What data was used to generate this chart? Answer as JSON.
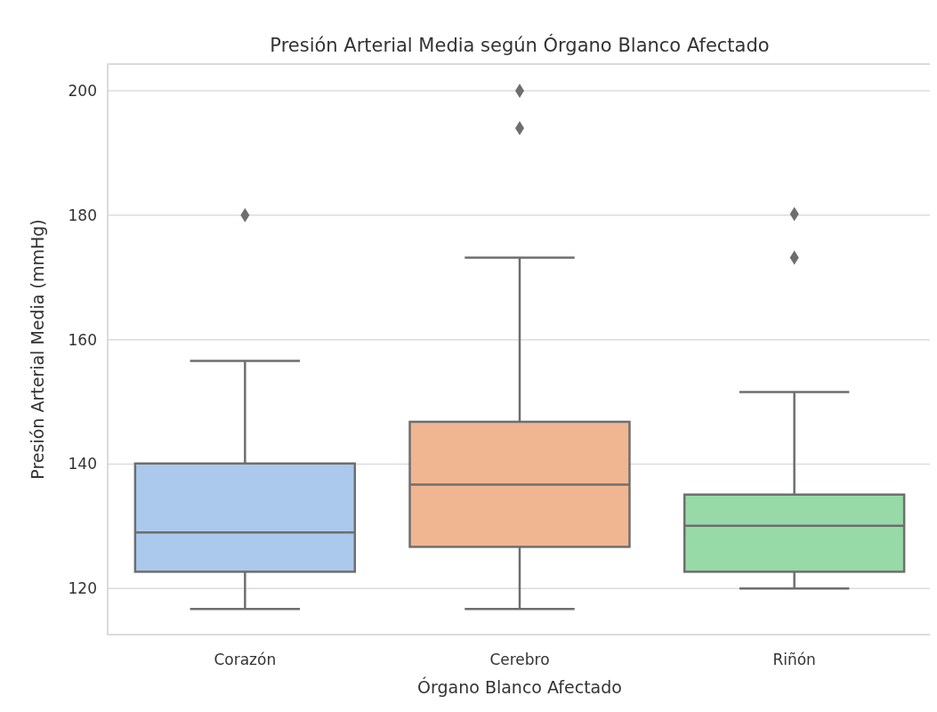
{
  "chart_data": {
    "type": "box",
    "title": "Presión Arterial Media según Órgano Blanco Afectado",
    "xlabel": "Órgano Blanco Afectado",
    "ylabel": "Presión Arterial Media (mmHg)",
    "categories": [
      "Corazón",
      "Cerebro",
      "Riñón"
    ],
    "colors": [
      "#abc9ed",
      "#f0b691",
      "#98d9a8"
    ],
    "boxes": [
      {
        "low": 116.7,
        "q1": 122.7,
        "median": 129,
        "q3": 140.1,
        "high": 156.6,
        "outliers": [
          180
        ]
      },
      {
        "low": 116.7,
        "q1": 126.7,
        "median": 136.7,
        "q3": 146.8,
        "high": 173.2,
        "outliers": [
          200,
          194
        ]
      },
      {
        "low": 120,
        "q1": 122.7,
        "median": 130.1,
        "q3": 135.1,
        "high": 151.6,
        "outliers": [
          180.2,
          173.2
        ]
      }
    ],
    "ylim": [
      112.6,
      204.3
    ],
    "yticks": [
      120,
      140,
      160,
      180,
      200
    ],
    "grid": "y",
    "marker": "diamond"
  }
}
